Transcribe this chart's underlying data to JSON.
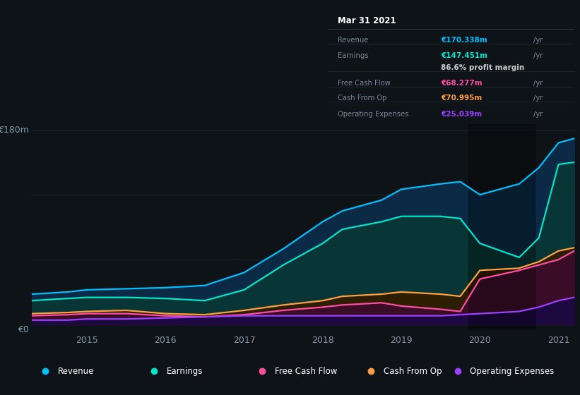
{
  "background_color": "#0e1318",
  "plot_bg_color": "#0e1318",
  "x_years": [
    2014.3,
    2014.75,
    2015.0,
    2015.5,
    2016.0,
    2016.5,
    2017.0,
    2017.5,
    2018.0,
    2018.25,
    2018.75,
    2019.0,
    2019.5,
    2019.75,
    2020.0,
    2020.5,
    2020.75,
    2021.0,
    2021.2
  ],
  "revenue": [
    28,
    30,
    32,
    33,
    34,
    36,
    48,
    70,
    95,
    105,
    115,
    125,
    130,
    132,
    120,
    130,
    145,
    168,
    172
  ],
  "earnings": [
    22,
    24,
    25,
    25,
    24,
    22,
    32,
    55,
    75,
    88,
    95,
    100,
    100,
    98,
    75,
    62,
    80,
    148,
    150
  ],
  "cash_from_op": [
    10,
    11,
    12,
    13,
    10,
    9,
    13,
    18,
    22,
    26,
    28,
    30,
    28,
    26,
    50,
    52,
    58,
    68,
    71
  ],
  "free_cash_flow": [
    8,
    9,
    10,
    10,
    8,
    7,
    9,
    13,
    16,
    18,
    20,
    17,
    14,
    12,
    42,
    50,
    55,
    60,
    68
  ],
  "operating_expenses": [
    4,
    4,
    5,
    5,
    6,
    7,
    8,
    8,
    8,
    8,
    8,
    8,
    8,
    9,
    10,
    12,
    16,
    22,
    25
  ],
  "revenue_color": "#00bfff",
  "earnings_color": "#00e5cc",
  "free_cash_flow_color": "#ff4da6",
  "cash_from_op_color": "#ffa040",
  "operating_expenses_color": "#9b40ff",
  "fill_revenue_color": "#0a2a45",
  "fill_earnings_color": "#083535",
  "fill_fcf_color": "#3a0c28",
  "fill_cop_color": "#2e1e00",
  "fill_opex_color": "#1e0840",
  "ymax": 185,
  "ymin": -5,
  "xticks": [
    2015,
    2016,
    2017,
    2018,
    2019,
    2020,
    2021
  ],
  "grid_color": "#232d3a",
  "text_color": "#8899aa",
  "legend_bg": "#151c25",
  "legend_border": "#2a3545",
  "tooltip_bg": "#060a0e",
  "tooltip_border": "#2a3545",
  "tooltip_date": "Mar 31 2021",
  "legend_items": [
    {
      "label": "Revenue",
      "color": "#00bfff"
    },
    {
      "label": "Earnings",
      "color": "#00e5cc"
    },
    {
      "label": "Free Cash Flow",
      "color": "#ff4da6"
    },
    {
      "label": "Cash From Op",
      "color": "#ffa040"
    },
    {
      "label": "Operating Expenses",
      "color": "#9b40ff"
    }
  ]
}
